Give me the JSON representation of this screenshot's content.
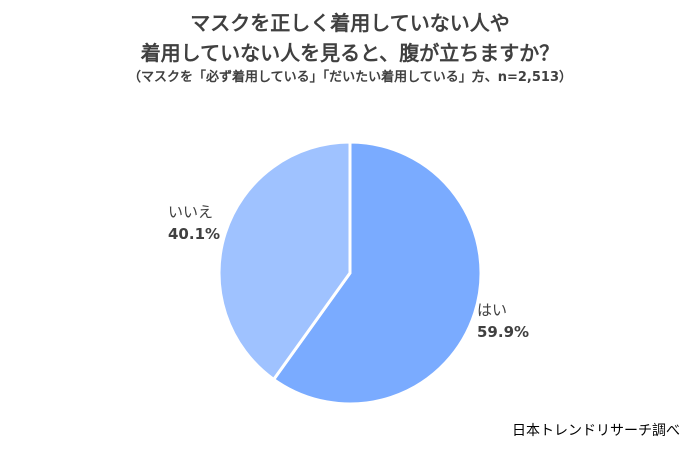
{
  "title_lines": [
    "マスクを正しく着用していない人や",
    "着用していない人を見ると、腹が立ちますか？"
  ],
  "subtitle": "（マスクを「必ず着用している」「だいたい着用している」方、n=2,513）",
  "source": "日本トレンドリサーチ調べ",
  "chart_data": {
    "type": "pie",
    "title": "マスクを正しく着用していない人や着用していない人を見ると、腹が立ちますか？",
    "subtitle": "（マスクを「必ず着用している」「だいたい着用している」方、n=2,513）",
    "slices": [
      {
        "label": "はい",
        "value": 59.9,
        "value_label": "59.9%",
        "color": "#7aabff"
      },
      {
        "label": "いいえ",
        "value": 40.1,
        "value_label": "40.1%",
        "color": "#9fc2ff"
      }
    ],
    "start_angle": "12 o'clock",
    "direction": "clockwise",
    "slice_border_color": "#ffffff",
    "legend": "none"
  }
}
